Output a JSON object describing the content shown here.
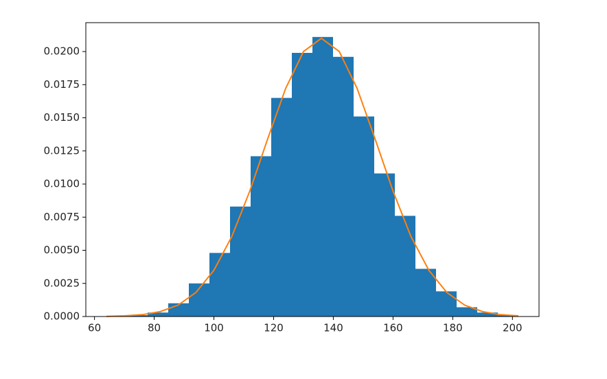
{
  "chart_data": {
    "type": "histogram",
    "bins": [
      64,
      70.9,
      77.8,
      84.7,
      91.6,
      98.5,
      105.4,
      112.3,
      119.2,
      126.1,
      133,
      139.9,
      146.8,
      153.7,
      160.6,
      167.5,
      174.4,
      181.3,
      188.2,
      195.1,
      202
    ],
    "values": [
      2e-05,
      0.0001,
      0.0003,
      0.001,
      0.0025,
      0.0048,
      0.0083,
      0.0121,
      0.0165,
      0.0199,
      0.0211,
      0.0196,
      0.0151,
      0.0108,
      0.0076,
      0.0036,
      0.0019,
      0.0007,
      0.0003,
      0.0001
    ],
    "color": "#1f77b4",
    "curve": {
      "color": "#ff7f0e",
      "x": [
        64,
        70,
        76,
        82,
        88,
        94,
        100,
        106,
        112,
        118,
        124,
        130,
        136,
        142,
        148,
        154,
        160,
        166,
        172,
        178,
        184,
        190,
        196,
        202
      ],
      "values": [
        1.6e-05,
        5e-05,
        0.00014,
        0.00037,
        0.00086,
        0.00182,
        0.00349,
        0.00604,
        0.00946,
        0.0134,
        0.0172,
        0.02,
        0.021,
        0.02,
        0.0172,
        0.0134,
        0.00946,
        0.00604,
        0.00349,
        0.00182,
        0.00086,
        0.00037,
        0.00014,
        5e-05
      ]
    },
    "xlim": [
      57.1,
      208.9
    ],
    "ylim": [
      0,
      0.02218
    ],
    "xticks": [
      60,
      80,
      100,
      120,
      140,
      160,
      180,
      200
    ],
    "yticks": [
      {
        "value": 0,
        "label": "0.0000"
      },
      {
        "value": 0.0025,
        "label": "0.0025"
      },
      {
        "value": 0.005,
        "label": "0.0050"
      },
      {
        "value": 0.0075,
        "label": "0.0075"
      },
      {
        "value": 0.01,
        "label": "0.0100"
      },
      {
        "value": 0.0125,
        "label": "0.0125"
      },
      {
        "value": 0.015,
        "label": "0.0150"
      },
      {
        "value": 0.0175,
        "label": "0.0175"
      },
      {
        "value": 0.02,
        "label": "0.0200"
      }
    ]
  }
}
